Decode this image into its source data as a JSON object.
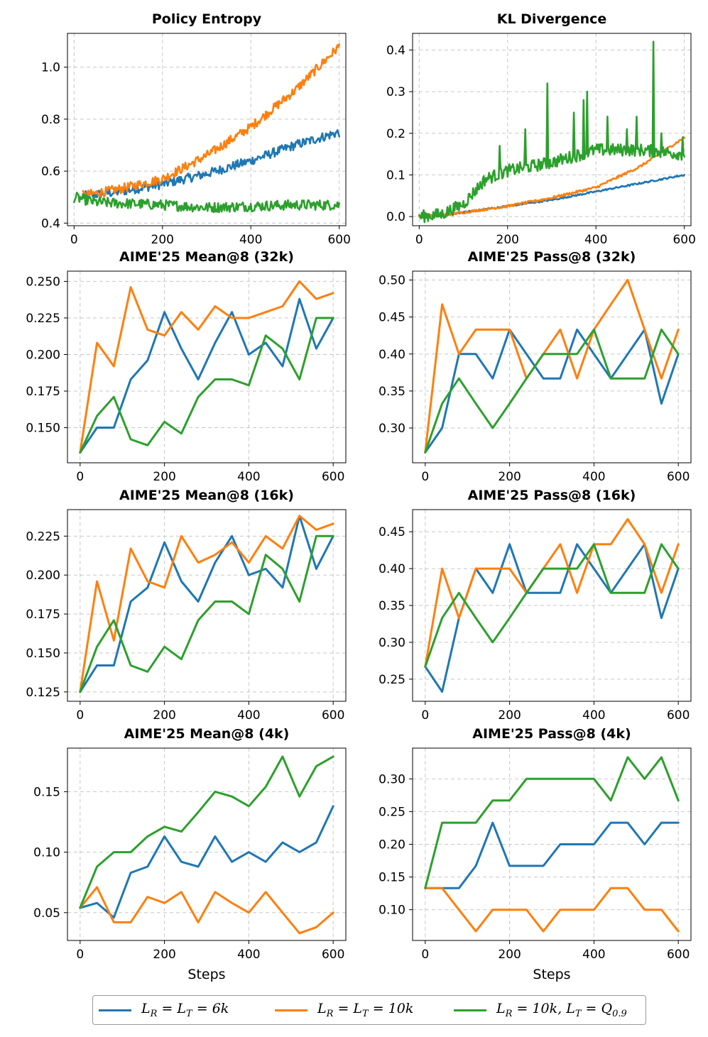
{
  "colors": {
    "blue": "#1f77b4",
    "orange": "#ff7f0e",
    "green": "#2ca02c"
  },
  "legend": {
    "entries": [
      {
        "key": "blue",
        "base": "L",
        "sub1": "R",
        "mid": " = L",
        "sub2": "T",
        "rest": " = 6k"
      },
      {
        "key": "orange",
        "base": "L",
        "sub1": "R",
        "mid": " = L",
        "sub2": "T",
        "rest": " = 10k"
      },
      {
        "key": "green",
        "base": "L",
        "sub1": "R",
        "mid": " = 10k, L",
        "sub2": "T",
        "rest": " = Q",
        "sub3": "0.9"
      }
    ]
  },
  "chart_data": [
    {
      "type": "line",
      "title": "Policy Entropy",
      "xlabel": "",
      "ylabel": "",
      "xlim": [
        -15,
        615
      ],
      "ylim": [
        0.39,
        1.13
      ],
      "xticks": [
        0,
        200,
        400,
        600
      ],
      "yticks": [
        0.4,
        0.6,
        0.8,
        1.0
      ],
      "ytick_labels": [
        "0.4",
        "0.6",
        "0.8",
        "1.0"
      ],
      "noisy": true,
      "series": [
        {
          "name": "blue",
          "anchors_x": [
            0,
            100,
            200,
            300,
            400,
            500,
            600
          ],
          "anchors_y": [
            0.5,
            0.52,
            0.55,
            0.59,
            0.64,
            0.7,
            0.75
          ],
          "noise": 0.018,
          "start_x": 20
        },
        {
          "name": "orange",
          "anchors_x": [
            0,
            100,
            200,
            300,
            400,
            500,
            600
          ],
          "anchors_y": [
            0.5,
            0.53,
            0.57,
            0.66,
            0.77,
            0.91,
            1.08
          ],
          "noise": 0.018,
          "start_x": 20
        },
        {
          "name": "green",
          "anchors_x": [
            0,
            50,
            200,
            300,
            400,
            500,
            600
          ],
          "anchors_y": [
            0.5,
            0.48,
            0.47,
            0.46,
            0.465,
            0.47,
            0.47
          ],
          "noise": 0.02,
          "start_x": 0
        }
      ]
    },
    {
      "type": "line",
      "title": "KL Divergence",
      "xlabel": "",
      "ylabel": "",
      "xlim": [
        -15,
        615
      ],
      "ylim": [
        -0.022,
        0.44
      ],
      "xticks": [
        0,
        200,
        400,
        600
      ],
      "yticks": [
        0.0,
        0.1,
        0.2,
        0.3,
        0.4
      ],
      "ytick_labels": [
        "0.0",
        "0.1",
        "0.2",
        "0.3",
        "0.4"
      ],
      "noisy": true,
      "series": [
        {
          "name": "blue",
          "anchors_x": [
            0,
            50,
            100,
            200,
            300,
            400,
            500,
            600
          ],
          "anchors_y": [
            0.0,
            0.002,
            0.01,
            0.025,
            0.04,
            0.06,
            0.08,
            0.1
          ],
          "noise": 0.002,
          "start_x": 0
        },
        {
          "name": "orange",
          "anchors_x": [
            0,
            50,
            100,
            200,
            300,
            400,
            500,
            600
          ],
          "anchors_y": [
            0.0,
            0.003,
            0.01,
            0.025,
            0.045,
            0.07,
            0.12,
            0.19
          ],
          "noise": 0.003,
          "start_x": 0
        },
        {
          "name": "green",
          "anchors_x": [
            0,
            50,
            100,
            150,
            200,
            300,
            400,
            500,
            600
          ],
          "anchors_y": [
            0.0,
            0.005,
            0.03,
            0.09,
            0.11,
            0.13,
            0.16,
            0.16,
            0.15
          ],
          "noise": 0.015,
          "start_x": 0,
          "spikes": [
            [
              182,
              0.17
            ],
            [
              240,
              0.21
            ],
            [
              290,
              0.32
            ],
            [
              350,
              0.25
            ],
            [
              372,
              0.28
            ],
            [
              380,
              0.3
            ],
            [
              426,
              0.24
            ],
            [
              470,
              0.21
            ],
            [
              492,
              0.24
            ],
            [
              530,
              0.42
            ],
            [
              548,
              0.2
            ],
            [
              596,
              0.19
            ]
          ]
        }
      ]
    },
    {
      "type": "line",
      "title": "AIME'25 Mean@8 (32k)",
      "xlabel": "",
      "ylabel": "",
      "xlim": [
        -30,
        630
      ],
      "ylim": [
        0.126,
        0.257
      ],
      "xticks": [
        0,
        200,
        400,
        600
      ],
      "yticks": [
        0.15,
        0.175,
        0.2,
        0.225,
        0.25
      ],
      "ytick_labels": [
        "0.150",
        "0.175",
        "0.200",
        "0.225",
        "0.250"
      ],
      "x": [
        0,
        40,
        80,
        120,
        160,
        200,
        240,
        280,
        320,
        360,
        400,
        440,
        480,
        520,
        560,
        600
      ],
      "series": [
        {
          "name": "blue",
          "values": [
            0.133,
            0.15,
            0.15,
            0.183,
            0.196,
            0.229,
            0.204,
            0.183,
            0.208,
            0.229,
            0.2,
            0.208,
            0.192,
            0.238,
            0.204,
            0.225
          ]
        },
        {
          "name": "orange",
          "values": [
            0.133,
            0.208,
            0.192,
            0.246,
            0.217,
            0.213,
            0.229,
            0.217,
            0.233,
            0.225,
            0.225,
            0.229,
            0.233,
            0.25,
            0.238,
            0.242
          ]
        },
        {
          "name": "green",
          "values": [
            0.133,
            0.158,
            0.171,
            0.142,
            0.138,
            0.154,
            0.146,
            0.171,
            0.183,
            0.183,
            0.179,
            0.213,
            0.204,
            0.183,
            0.225,
            0.225
          ]
        }
      ]
    },
    {
      "type": "line",
      "title": "AIME'25 Pass@8 (32k)",
      "xlabel": "",
      "ylabel": "",
      "xlim": [
        -30,
        630
      ],
      "ylim": [
        0.253,
        0.512
      ],
      "xticks": [
        0,
        200,
        400,
        600
      ],
      "yticks": [
        0.3,
        0.35,
        0.4,
        0.45,
        0.5
      ],
      "ytick_labels": [
        "0.30",
        "0.35",
        "0.40",
        "0.45",
        "0.50"
      ],
      "x": [
        0,
        40,
        80,
        120,
        160,
        200,
        240,
        280,
        320,
        360,
        400,
        440,
        480,
        520,
        560,
        600
      ],
      "series": [
        {
          "name": "blue",
          "values": [
            0.267,
            0.3,
            0.4,
            0.4,
            0.367,
            0.433,
            0.4,
            0.367,
            0.367,
            0.433,
            0.4,
            0.367,
            0.4,
            0.433,
            0.333,
            0.4
          ]
        },
        {
          "name": "orange",
          "values": [
            0.267,
            0.467,
            0.4,
            0.433,
            0.433,
            0.433,
            0.367,
            0.4,
            0.433,
            0.367,
            0.433,
            0.467,
            0.5,
            0.433,
            0.367,
            0.433
          ]
        },
        {
          "name": "green",
          "values": [
            0.267,
            0.333,
            0.367,
            0.333,
            0.3,
            0.333,
            0.367,
            0.4,
            0.4,
            0.4,
            0.433,
            0.367,
            0.367,
            0.367,
            0.433,
            0.4
          ]
        }
      ]
    },
    {
      "type": "line",
      "title": "AIME'25 Mean@8 (16k)",
      "xlabel": "",
      "ylabel": "",
      "xlim": [
        -30,
        630
      ],
      "ylim": [
        0.119,
        0.242
      ],
      "xticks": [
        0,
        200,
        400,
        600
      ],
      "yticks": [
        0.125,
        0.15,
        0.175,
        0.2,
        0.225
      ],
      "ytick_labels": [
        "0.125",
        "0.150",
        "0.175",
        "0.200",
        "0.225"
      ],
      "x": [
        0,
        40,
        80,
        120,
        160,
        200,
        240,
        280,
        320,
        360,
        400,
        440,
        480,
        520,
        560,
        600
      ],
      "series": [
        {
          "name": "blue",
          "values": [
            0.125,
            0.142,
            0.142,
            0.183,
            0.192,
            0.221,
            0.196,
            0.183,
            0.208,
            0.225,
            0.2,
            0.204,
            0.192,
            0.238,
            0.204,
            0.225
          ]
        },
        {
          "name": "orange",
          "values": [
            0.125,
            0.196,
            0.158,
            0.217,
            0.196,
            0.192,
            0.225,
            0.208,
            0.213,
            0.221,
            0.208,
            0.225,
            0.217,
            0.238,
            0.229,
            0.233
          ]
        },
        {
          "name": "green",
          "values": [
            0.125,
            0.154,
            0.171,
            0.142,
            0.138,
            0.154,
            0.146,
            0.171,
            0.183,
            0.183,
            0.175,
            0.213,
            0.204,
            0.183,
            0.225,
            0.225
          ]
        }
      ]
    },
    {
      "type": "line",
      "title": "AIME'25 Pass@8 (16k)",
      "xlabel": "",
      "ylabel": "",
      "xlim": [
        -30,
        630
      ],
      "ylim": [
        0.22,
        0.48
      ],
      "xticks": [
        0,
        200,
        400,
        600
      ],
      "yticks": [
        0.25,
        0.3,
        0.35,
        0.4,
        0.45
      ],
      "ytick_labels": [
        "0.25",
        "0.30",
        "0.35",
        "0.40",
        "0.45"
      ],
      "x": [
        0,
        40,
        80,
        120,
        160,
        200,
        240,
        280,
        320,
        360,
        400,
        440,
        480,
        520,
        560,
        600
      ],
      "series": [
        {
          "name": "blue",
          "values": [
            0.267,
            0.233,
            0.333,
            0.4,
            0.367,
            0.433,
            0.367,
            0.367,
            0.367,
            0.433,
            0.4,
            0.367,
            0.4,
            0.433,
            0.333,
            0.4
          ]
        },
        {
          "name": "orange",
          "values": [
            0.267,
            0.4,
            0.333,
            0.4,
            0.4,
            0.4,
            0.367,
            0.4,
            0.433,
            0.367,
            0.433,
            0.433,
            0.467,
            0.433,
            0.367,
            0.433
          ]
        },
        {
          "name": "green",
          "values": [
            0.267,
            0.333,
            0.367,
            0.333,
            0.3,
            0.333,
            0.367,
            0.4,
            0.4,
            0.4,
            0.433,
            0.367,
            0.367,
            0.367,
            0.433,
            0.4
          ]
        }
      ]
    },
    {
      "type": "line",
      "title": "AIME'25 Mean@8 (4k)",
      "xlabel": "Steps",
      "ylabel": "",
      "xlim": [
        -30,
        630
      ],
      "ylim": [
        0.027,
        0.186
      ],
      "xticks": [
        0,
        200,
        400,
        600
      ],
      "yticks": [
        0.05,
        0.1,
        0.15
      ],
      "ytick_labels": [
        "0.05",
        "0.10",
        "0.15"
      ],
      "x": [
        0,
        40,
        80,
        120,
        160,
        200,
        240,
        280,
        320,
        360,
        400,
        440,
        480,
        520,
        560,
        600
      ],
      "series": [
        {
          "name": "blue",
          "values": [
            0.054,
            0.058,
            0.046,
            0.083,
            0.088,
            0.113,
            0.092,
            0.088,
            0.113,
            0.092,
            0.1,
            0.092,
            0.108,
            0.1,
            0.108,
            0.138
          ]
        },
        {
          "name": "orange",
          "values": [
            0.054,
            0.071,
            0.042,
            0.042,
            0.063,
            0.058,
            0.067,
            0.042,
            0.067,
            0.058,
            0.05,
            0.067,
            0.05,
            0.033,
            0.038,
            0.05
          ]
        },
        {
          "name": "green",
          "values": [
            0.054,
            0.088,
            0.1,
            0.1,
            0.113,
            0.121,
            0.117,
            0.133,
            0.15,
            0.146,
            0.138,
            0.154,
            0.179,
            0.146,
            0.171,
            0.179
          ]
        }
      ]
    },
    {
      "type": "line",
      "title": "AIME'25 Pass@8 (4k)",
      "xlabel": "Steps",
      "ylabel": "",
      "xlim": [
        -30,
        630
      ],
      "ylim": [
        0.053,
        0.347
      ],
      "xticks": [
        0,
        200,
        400,
        600
      ],
      "yticks": [
        0.1,
        0.15,
        0.2,
        0.25,
        0.3
      ],
      "ytick_labels": [
        "0.10",
        "0.15",
        "0.20",
        "0.25",
        "0.30"
      ],
      "x": [
        0,
        40,
        80,
        120,
        160,
        200,
        240,
        280,
        320,
        360,
        400,
        440,
        480,
        520,
        560,
        600
      ],
      "series": [
        {
          "name": "blue",
          "values": [
            0.133,
            0.133,
            0.133,
            0.167,
            0.233,
            0.167,
            0.167,
            0.167,
            0.2,
            0.2,
            0.2,
            0.233,
            0.233,
            0.2,
            0.233,
            0.233
          ]
        },
        {
          "name": "orange",
          "values": [
            0.133,
            0.133,
            0.1,
            0.067,
            0.1,
            0.1,
            0.1,
            0.067,
            0.1,
            0.1,
            0.1,
            0.133,
            0.133,
            0.1,
            0.1,
            0.067
          ]
        },
        {
          "name": "green",
          "values": [
            0.133,
            0.233,
            0.233,
            0.233,
            0.267,
            0.267,
            0.3,
            0.3,
            0.3,
            0.3,
            0.3,
            0.267,
            0.333,
            0.3,
            0.333,
            0.267
          ]
        }
      ]
    }
  ]
}
